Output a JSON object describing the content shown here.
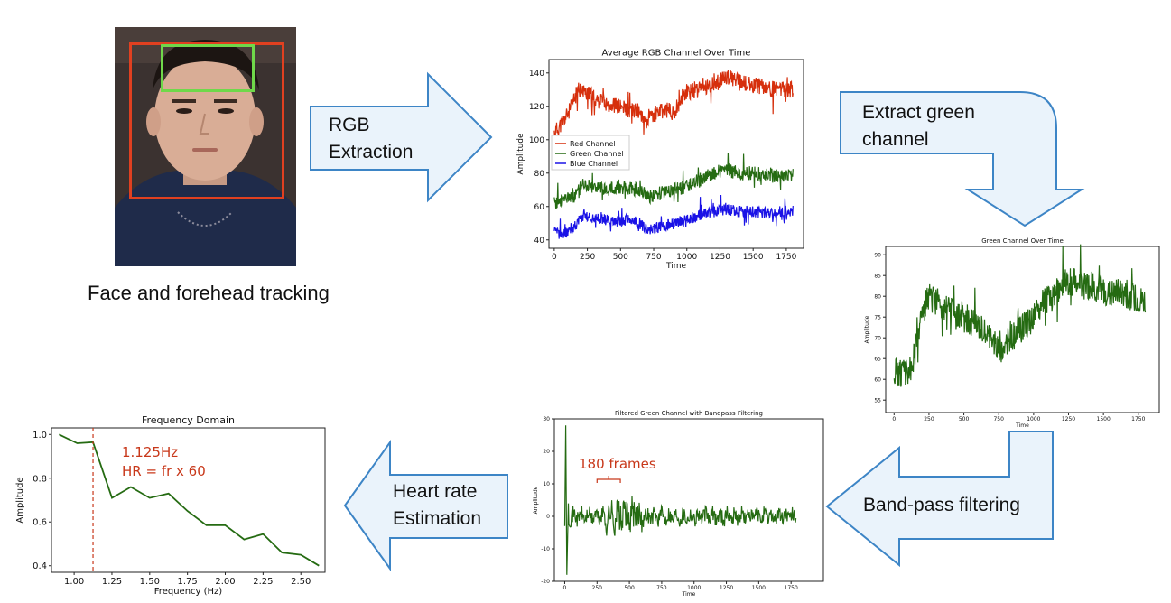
{
  "steps": {
    "face_caption": "Face and forehead tracking",
    "rgb_extraction": [
      "RGB",
      "Extraction"
    ],
    "extract_green": [
      "Extract green",
      "channel"
    ],
    "bandpass": "Band-pass filtering",
    "hr_estimation": [
      "Heart rate",
      "Estimation"
    ]
  },
  "colors": {
    "arrow_fill": "#eaf3fb",
    "arrow_stroke": "#3d85c6",
    "red_channel": "#d62f0c",
    "green_channel": "#256b12",
    "blue_channel": "#1a12e6",
    "annotation": "#c8381a",
    "face_box": "#e04020",
    "forehead_box": "#6fd84a"
  },
  "chart_data": [
    {
      "type": "line",
      "title": "Average RGB Channel Over Time",
      "xlabel": "Time",
      "ylabel": "Amplitude",
      "xlim": [
        -40,
        1880
      ],
      "ylim": [
        35,
        148
      ],
      "xticks": [
        0,
        250,
        500,
        750,
        1000,
        1250,
        1500,
        1750
      ],
      "yticks": [
        40,
        60,
        80,
        100,
        120,
        140
      ],
      "legend": "left-middle",
      "series": [
        {
          "name": "Red Channel",
          "color": "#d62f0c",
          "base": [
            [
              0,
              104
            ],
            [
              60,
              110
            ],
            [
              120,
              118
            ],
            [
              180,
              130
            ],
            [
              250,
              128
            ],
            [
              320,
              124
            ],
            [
              400,
              122
            ],
            [
              480,
              120
            ],
            [
              560,
              118
            ],
            [
              640,
              117
            ],
            [
              700,
              112
            ],
            [
              780,
              116
            ],
            [
              850,
              118
            ],
            [
              900,
              116
            ],
            [
              960,
              125
            ],
            [
              1050,
              130
            ],
            [
              1150,
              132
            ],
            [
              1250,
              135
            ],
            [
              1320,
              138
            ],
            [
              1400,
              134
            ],
            [
              1500,
              133
            ],
            [
              1600,
              131
            ],
            [
              1700,
              130
            ],
            [
              1800,
              130
            ]
          ],
          "noise": 7,
          "seed": 11
        },
        {
          "name": "Green Channel",
          "color": "#256b12",
          "base": [
            [
              0,
              62
            ],
            [
              80,
              64
            ],
            [
              150,
              66
            ],
            [
              220,
              74
            ],
            [
              300,
              72
            ],
            [
              400,
              70
            ],
            [
              480,
              72
            ],
            [
              560,
              71
            ],
            [
              640,
              70
            ],
            [
              720,
              66
            ],
            [
              800,
              68
            ],
            [
              900,
              70
            ],
            [
              1000,
              72
            ],
            [
              1100,
              76
            ],
            [
              1200,
              80
            ],
            [
              1300,
              82
            ],
            [
              1400,
              80
            ],
            [
              1500,
              80
            ],
            [
              1600,
              79
            ],
            [
              1700,
              78
            ],
            [
              1800,
              79
            ]
          ],
          "noise": 6,
          "seed": 23
        },
        {
          "name": "Blue Channel",
          "color": "#1a12e6",
          "base": [
            [
              0,
              44
            ],
            [
              80,
              44
            ],
            [
              150,
              48
            ],
            [
              220,
              55
            ],
            [
              300,
              53
            ],
            [
              400,
              52
            ],
            [
              480,
              51
            ],
            [
              560,
              52
            ],
            [
              640,
              50
            ],
            [
              720,
              46
            ],
            [
              800,
              48
            ],
            [
              900,
              50
            ],
            [
              1000,
              52
            ],
            [
              1100,
              55
            ],
            [
              1200,
              57
            ],
            [
              1300,
              58
            ],
            [
              1400,
              57
            ],
            [
              1500,
              57
            ],
            [
              1600,
              56
            ],
            [
              1700,
              55
            ],
            [
              1800,
              56
            ]
          ],
          "noise": 5,
          "seed": 37
        }
      ]
    },
    {
      "type": "line",
      "title": "Green Channel Over Time",
      "xlabel": "Time",
      "ylabel": "Amplitude",
      "xlim": [
        -60,
        1900
      ],
      "ylim": [
        52,
        92
      ],
      "xticks": [
        0,
        250,
        500,
        750,
        1000,
        1250,
        1500,
        1750
      ],
      "yticks": [
        55,
        60,
        65,
        70,
        75,
        80,
        85,
        90
      ],
      "series": [
        {
          "name": "Green Channel",
          "color": "#256b12",
          "base": [
            [
              0,
              62
            ],
            [
              60,
              61
            ],
            [
              120,
              62
            ],
            [
              180,
              72
            ],
            [
              240,
              80
            ],
            [
              300,
              79
            ],
            [
              380,
              77
            ],
            [
              460,
              75
            ],
            [
              540,
              74
            ],
            [
              620,
              73
            ],
            [
              700,
              70
            ],
            [
              760,
              67
            ],
            [
              820,
              69
            ],
            [
              900,
              72
            ],
            [
              980,
              74
            ],
            [
              1060,
              78
            ],
            [
              1140,
              80
            ],
            [
              1220,
              83
            ],
            [
              1300,
              84
            ],
            [
              1380,
              83
            ],
            [
              1460,
              82
            ],
            [
              1540,
              81
            ],
            [
              1620,
              81
            ],
            [
              1700,
              80
            ],
            [
              1800,
              79
            ]
          ],
          "noise": 5,
          "seed": 51
        }
      ]
    },
    {
      "type": "line",
      "title": "Filtered Green Channel with Bandpass Filtering",
      "xlabel": "Time",
      "ylabel": "Amplitude",
      "xlim": [
        -80,
        2000
      ],
      "ylim": [
        -20,
        30
      ],
      "xticks": [
        0,
        250,
        500,
        750,
        1000,
        1250,
        1500,
        1750
      ],
      "yticks": [
        -20,
        -10,
        0,
        10,
        20,
        30
      ],
      "series": [
        {
          "name": "Filtered Green",
          "color": "#256b12",
          "spike": [
            [
              0,
              -3
            ],
            [
              8,
              28
            ],
            [
              16,
              -18
            ],
            [
              28,
              4
            ]
          ],
          "noise": 2.4,
          "seed": 71
        }
      ],
      "annotation": {
        "text": "180 frames",
        "x_start": 250,
        "x_end": 430
      }
    },
    {
      "type": "line",
      "title": "Frequency Domain",
      "xlabel": "Frequency (Hz)",
      "ylabel": "Amplitude",
      "xlim": [
        0.85,
        2.66
      ],
      "ylim": [
        0.37,
        1.03
      ],
      "xticks": [
        1.0,
        1.25,
        1.5,
        1.75,
        2.0,
        2.25,
        2.5
      ],
      "xtick_labels": [
        "1.00",
        "1.25",
        "1.50",
        "1.75",
        "2.00",
        "2.25",
        "2.50"
      ],
      "yticks": [
        0.4,
        0.6,
        0.8,
        1.0
      ],
      "ytick_labels": [
        "0.4",
        "0.6",
        "0.8",
        "1.0"
      ],
      "series": [
        {
          "name": "Spectrum",
          "color": "#256b12",
          "x": [
            0.9,
            1.02,
            1.125,
            1.25,
            1.375,
            1.5,
            1.625,
            1.75,
            1.875,
            2.0,
            2.125,
            2.25,
            2.375,
            2.5,
            2.62
          ],
          "y": [
            1.0,
            0.96,
            0.965,
            0.71,
            0.76,
            0.71,
            0.73,
            0.65,
            0.585,
            0.585,
            0.52,
            0.545,
            0.46,
            0.45,
            0.4
          ]
        }
      ],
      "annotation": {
        "peak_x": 1.125,
        "peak_label": "1.125Hz",
        "formula": "HR = fr x 60"
      }
    }
  ]
}
